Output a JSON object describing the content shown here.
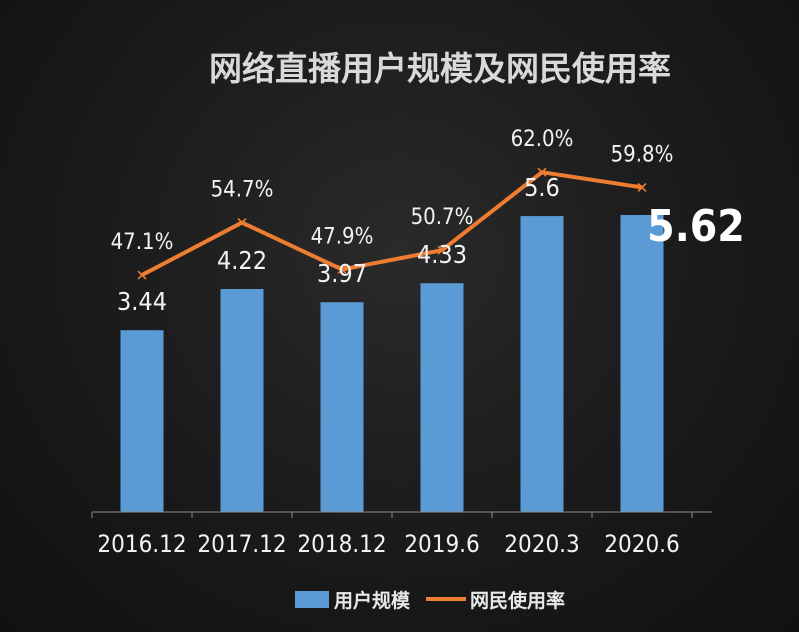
{
  "chart_data": {
    "type": "bar+line",
    "title": "网络直播用户规模及网民使用率",
    "categories": [
      "2016.12",
      "2017.12",
      "2018.12",
      "2019.6",
      "2020.3",
      "2020.6"
    ],
    "series": [
      {
        "name": "用户规模",
        "type": "bar",
        "values": [
          3.44,
          4.22,
          3.97,
          4.33,
          5.6,
          5.62
        ],
        "labels": [
          "3.44",
          "4.22",
          "3.97",
          "4.33",
          "5.6",
          "5.62"
        ],
        "color": "#5b9bd5"
      },
      {
        "name": "网民使用率",
        "type": "line",
        "values": [
          47.1,
          54.7,
          47.9,
          50.7,
          62.0,
          59.8
        ],
        "labels": [
          "47.1%",
          "54.7%",
          "47.9%",
          "50.7%",
          "62.0%",
          "59.8%"
        ],
        "color": "#ed7d31"
      }
    ],
    "legend": [
      "用户规模",
      "网民使用率"
    ],
    "legend_position": "bottom-center",
    "bar_ylim": [
      0,
      9.5
    ],
    "line_ylim": [
      0,
      100
    ],
    "grid": false
  }
}
